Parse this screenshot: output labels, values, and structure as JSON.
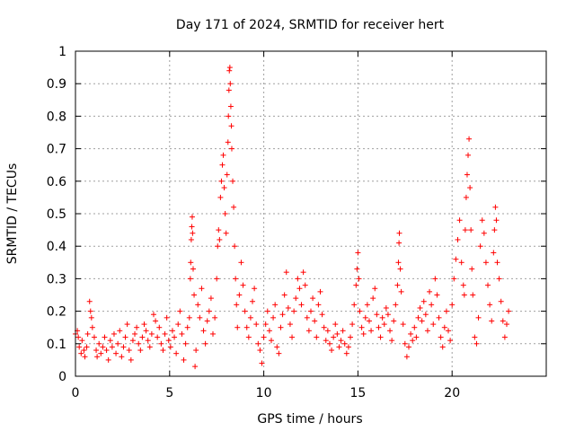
{
  "chart_data": {
    "type": "scatter",
    "title": "Day 171 of 2024, SRMTID for receiver hert",
    "xlabel": "GPS time / hours",
    "ylabel": "SRMTID / TECUs",
    "xlim": [
      0,
      25
    ],
    "ylim": [
      0,
      1
    ],
    "xticks": [
      0,
      5,
      10,
      15,
      20
    ],
    "yticks": [
      0,
      0.1,
      0.2,
      0.3,
      0.4,
      0.5,
      0.6,
      0.7,
      0.8,
      0.9,
      1
    ],
    "grid": true,
    "marker": "+",
    "color": "#ff0000",
    "series": [
      {
        "name": "SRMTID",
        "points": [
          [
            0.0,
            0.13
          ],
          [
            0.1,
            0.14
          ],
          [
            0.15,
            0.12
          ],
          [
            0.2,
            0.09
          ],
          [
            0.3,
            0.07
          ],
          [
            0.35,
            0.11
          ],
          [
            0.45,
            0.08
          ],
          [
            0.5,
            0.06
          ],
          [
            0.6,
            0.09
          ],
          [
            0.65,
            0.13
          ],
          [
            0.75,
            0.23
          ],
          [
            0.8,
            0.2
          ],
          [
            0.85,
            0.18
          ],
          [
            0.9,
            0.15
          ],
          [
            1.0,
            0.12
          ],
          [
            1.1,
            0.08
          ],
          [
            1.15,
            0.06
          ],
          [
            1.25,
            0.1
          ],
          [
            1.35,
            0.07
          ],
          [
            1.45,
            0.09
          ],
          [
            1.55,
            0.12
          ],
          [
            1.65,
            0.08
          ],
          [
            1.75,
            0.05
          ],
          [
            1.85,
            0.11
          ],
          [
            1.95,
            0.09
          ],
          [
            2.05,
            0.13
          ],
          [
            2.15,
            0.07
          ],
          [
            2.25,
            0.1
          ],
          [
            2.35,
            0.14
          ],
          [
            2.45,
            0.06
          ],
          [
            2.55,
            0.09
          ],
          [
            2.65,
            0.12
          ],
          [
            2.75,
            0.16
          ],
          [
            2.85,
            0.08
          ],
          [
            2.95,
            0.05
          ],
          [
            3.05,
            0.11
          ],
          [
            3.15,
            0.13
          ],
          [
            3.25,
            0.15
          ],
          [
            3.35,
            0.1
          ],
          [
            3.45,
            0.08
          ],
          [
            3.55,
            0.12
          ],
          [
            3.65,
            0.16
          ],
          [
            3.75,
            0.14
          ],
          [
            3.85,
            0.11
          ],
          [
            3.95,
            0.09
          ],
          [
            4.05,
            0.13
          ],
          [
            4.15,
            0.19
          ],
          [
            4.25,
            0.17
          ],
          [
            4.35,
            0.12
          ],
          [
            4.45,
            0.15
          ],
          [
            4.55,
            0.1
          ],
          [
            4.65,
            0.08
          ],
          [
            4.75,
            0.13
          ],
          [
            4.85,
            0.18
          ],
          [
            4.95,
            0.11
          ],
          [
            5.05,
            0.09
          ],
          [
            5.15,
            0.14
          ],
          [
            5.25,
            0.12
          ],
          [
            5.35,
            0.07
          ],
          [
            5.45,
            0.16
          ],
          [
            5.55,
            0.2
          ],
          [
            5.65,
            0.13
          ],
          [
            5.75,
            0.05
          ],
          [
            5.85,
            0.1
          ],
          [
            5.95,
            0.15
          ],
          [
            6.05,
            0.18
          ],
          [
            6.1,
            0.3
          ],
          [
            6.12,
            0.35
          ],
          [
            6.15,
            0.42
          ],
          [
            6.18,
            0.46
          ],
          [
            6.2,
            0.49
          ],
          [
            6.22,
            0.44
          ],
          [
            6.25,
            0.33
          ],
          [
            6.3,
            0.25
          ],
          [
            6.35,
            0.03
          ],
          [
            6.4,
            0.08
          ],
          [
            6.5,
            0.22
          ],
          [
            6.6,
            0.18
          ],
          [
            6.7,
            0.27
          ],
          [
            6.8,
            0.14
          ],
          [
            6.9,
            0.1
          ],
          [
            7.0,
            0.17
          ],
          [
            7.1,
            0.2
          ],
          [
            7.2,
            0.24
          ],
          [
            7.3,
            0.13
          ],
          [
            7.4,
            0.18
          ],
          [
            7.5,
            0.3
          ],
          [
            7.55,
            0.4
          ],
          [
            7.6,
            0.45
          ],
          [
            7.65,
            0.42
          ],
          [
            7.7,
            0.55
          ],
          [
            7.75,
            0.6
          ],
          [
            7.8,
            0.65
          ],
          [
            7.85,
            0.68
          ],
          [
            7.9,
            0.58
          ],
          [
            7.95,
            0.5
          ],
          [
            8.0,
            0.44
          ],
          [
            8.05,
            0.62
          ],
          [
            8.1,
            0.72
          ],
          [
            8.12,
            0.8
          ],
          [
            8.15,
            0.88
          ],
          [
            8.17,
            0.94
          ],
          [
            8.2,
            0.95
          ],
          [
            8.22,
            0.9
          ],
          [
            8.25,
            0.83
          ],
          [
            8.28,
            0.77
          ],
          [
            8.3,
            0.7
          ],
          [
            8.35,
            0.6
          ],
          [
            8.4,
            0.52
          ],
          [
            8.45,
            0.4
          ],
          [
            8.5,
            0.3
          ],
          [
            8.55,
            0.22
          ],
          [
            8.6,
            0.15
          ],
          [
            8.7,
            0.25
          ],
          [
            8.8,
            0.35
          ],
          [
            8.9,
            0.28
          ],
          [
            9.0,
            0.2
          ],
          [
            9.1,
            0.15
          ],
          [
            9.2,
            0.12
          ],
          [
            9.3,
            0.18
          ],
          [
            9.4,
            0.23
          ],
          [
            9.5,
            0.27
          ],
          [
            9.6,
            0.16
          ],
          [
            9.7,
            0.1
          ],
          [
            9.8,
            0.08
          ],
          [
            9.9,
            0.04
          ],
          [
            10.0,
            0.12
          ],
          [
            10.1,
            0.16
          ],
          [
            10.2,
            0.2
          ],
          [
            10.3,
            0.14
          ],
          [
            10.4,
            0.11
          ],
          [
            10.5,
            0.18
          ],
          [
            10.6,
            0.22
          ],
          [
            10.7,
            0.09
          ],
          [
            10.8,
            0.07
          ],
          [
            10.9,
            0.15
          ],
          [
            11.0,
            0.19
          ],
          [
            11.1,
            0.25
          ],
          [
            11.2,
            0.32
          ],
          [
            11.3,
            0.21
          ],
          [
            11.4,
            0.16
          ],
          [
            11.5,
            0.12
          ],
          [
            11.6,
            0.2
          ],
          [
            11.7,
            0.24
          ],
          [
            11.8,
            0.3
          ],
          [
            11.9,
            0.27
          ],
          [
            12.0,
            0.22
          ],
          [
            12.1,
            0.32
          ],
          [
            12.2,
            0.28
          ],
          [
            12.3,
            0.18
          ],
          [
            12.4,
            0.14
          ],
          [
            12.5,
            0.2
          ],
          [
            12.6,
            0.24
          ],
          [
            12.7,
            0.17
          ],
          [
            12.8,
            0.12
          ],
          [
            12.9,
            0.22
          ],
          [
            13.0,
            0.26
          ],
          [
            13.1,
            0.19
          ],
          [
            13.2,
            0.15
          ],
          [
            13.3,
            0.11
          ],
          [
            13.4,
            0.14
          ],
          [
            13.5,
            0.1
          ],
          [
            13.6,
            0.08
          ],
          [
            13.7,
            0.12
          ],
          [
            13.8,
            0.16
          ],
          [
            13.9,
            0.13
          ],
          [
            14.0,
            0.09
          ],
          [
            14.1,
            0.11
          ],
          [
            14.2,
            0.14
          ],
          [
            14.3,
            0.1
          ],
          [
            14.4,
            0.07
          ],
          [
            14.5,
            0.09
          ],
          [
            14.6,
            0.12
          ],
          [
            14.7,
            0.16
          ],
          [
            14.8,
            0.22
          ],
          [
            14.9,
            0.28
          ],
          [
            14.95,
            0.33
          ],
          [
            15.0,
            0.38
          ],
          [
            15.05,
            0.3
          ],
          [
            15.1,
            0.2
          ],
          [
            15.2,
            0.15
          ],
          [
            15.3,
            0.13
          ],
          [
            15.4,
            0.18
          ],
          [
            15.5,
            0.22
          ],
          [
            15.6,
            0.17
          ],
          [
            15.7,
            0.14
          ],
          [
            15.8,
            0.24
          ],
          [
            15.9,
            0.27
          ],
          [
            16.0,
            0.19
          ],
          [
            16.1,
            0.15
          ],
          [
            16.2,
            0.12
          ],
          [
            16.3,
            0.18
          ],
          [
            16.4,
            0.16
          ],
          [
            16.5,
            0.21
          ],
          [
            16.6,
            0.19
          ],
          [
            16.7,
            0.14
          ],
          [
            16.8,
            0.11
          ],
          [
            16.9,
            0.17
          ],
          [
            17.0,
            0.22
          ],
          [
            17.1,
            0.28
          ],
          [
            17.15,
            0.35
          ],
          [
            17.18,
            0.41
          ],
          [
            17.2,
            0.44
          ],
          [
            17.25,
            0.33
          ],
          [
            17.3,
            0.26
          ],
          [
            17.4,
            0.16
          ],
          [
            17.5,
            0.1
          ],
          [
            17.6,
            0.06
          ],
          [
            17.7,
            0.09
          ],
          [
            17.8,
            0.13
          ],
          [
            17.9,
            0.11
          ],
          [
            18.0,
            0.15
          ],
          [
            18.1,
            0.12
          ],
          [
            18.2,
            0.18
          ],
          [
            18.3,
            0.21
          ],
          [
            18.4,
            0.17
          ],
          [
            18.5,
            0.23
          ],
          [
            18.6,
            0.19
          ],
          [
            18.7,
            0.14
          ],
          [
            18.8,
            0.26
          ],
          [
            18.9,
            0.22
          ],
          [
            19.0,
            0.16
          ],
          [
            19.1,
            0.3
          ],
          [
            19.2,
            0.25
          ],
          [
            19.3,
            0.18
          ],
          [
            19.4,
            0.12
          ],
          [
            19.5,
            0.09
          ],
          [
            19.6,
            0.15
          ],
          [
            19.7,
            0.2
          ],
          [
            19.8,
            0.14
          ],
          [
            19.9,
            0.11
          ],
          [
            20.0,
            0.22
          ],
          [
            20.1,
            0.3
          ],
          [
            20.2,
            0.36
          ],
          [
            20.3,
            0.42
          ],
          [
            20.4,
            0.48
          ],
          [
            20.5,
            0.35
          ],
          [
            20.6,
            0.28
          ],
          [
            20.65,
            0.25
          ],
          [
            20.7,
            0.45
          ],
          [
            20.75,
            0.55
          ],
          [
            20.8,
            0.62
          ],
          [
            20.85,
            0.68
          ],
          [
            20.9,
            0.73
          ],
          [
            20.95,
            0.58
          ],
          [
            21.0,
            0.45
          ],
          [
            21.05,
            0.33
          ],
          [
            21.1,
            0.25
          ],
          [
            21.2,
            0.12
          ],
          [
            21.3,
            0.1
          ],
          [
            21.4,
            0.18
          ],
          [
            21.5,
            0.4
          ],
          [
            21.6,
            0.48
          ],
          [
            21.7,
            0.44
          ],
          [
            21.8,
            0.35
          ],
          [
            21.9,
            0.28
          ],
          [
            22.0,
            0.22
          ],
          [
            22.1,
            0.17
          ],
          [
            22.2,
            0.38
          ],
          [
            22.25,
            0.45
          ],
          [
            22.3,
            0.52
          ],
          [
            22.35,
            0.48
          ],
          [
            22.4,
            0.35
          ],
          [
            22.5,
            0.3
          ],
          [
            22.6,
            0.23
          ],
          [
            22.7,
            0.17
          ],
          [
            22.8,
            0.12
          ],
          [
            22.9,
            0.16
          ],
          [
            23.0,
            0.2
          ]
        ]
      }
    ]
  }
}
